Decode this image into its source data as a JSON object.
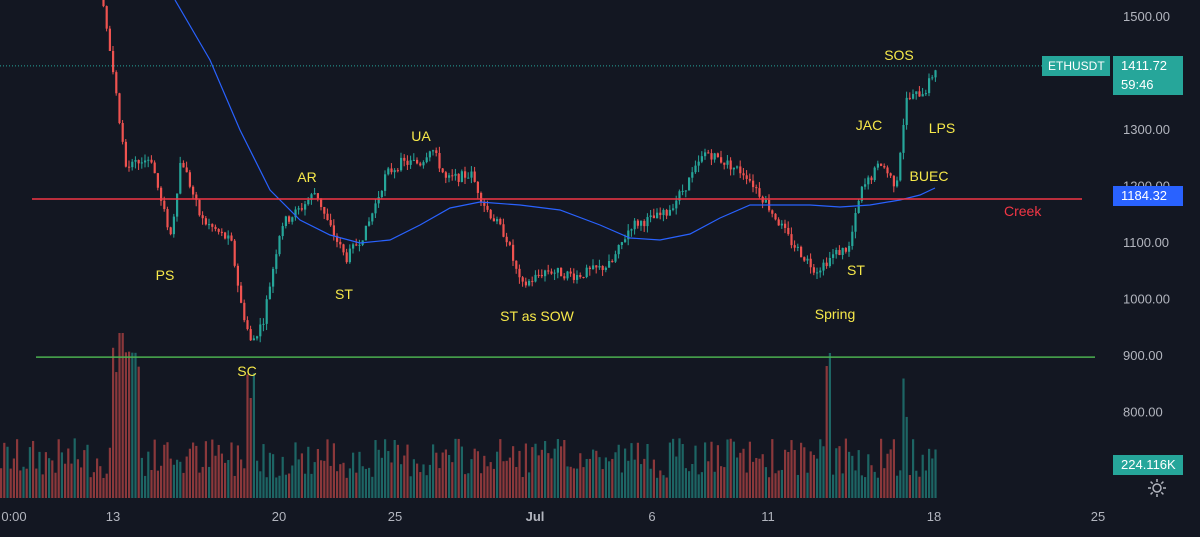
{
  "chart_data": {
    "type": "candlestick",
    "symbol": "ETHUSDT",
    "last_price": "1411.72",
    "countdown": "59:46",
    "current_volume": "224.116K",
    "line_value_label": "1184.32",
    "y_axis": {
      "ticks": [
        "1500.00",
        "1400.00",
        "1300.00",
        "1200.00",
        "1100.00",
        "1000.00",
        "900.00",
        "800.00"
      ],
      "range": [
        770,
        1535
      ]
    },
    "x_axis": {
      "ticks": [
        "0:00",
        "13",
        "20",
        "25",
        "Jul",
        "6",
        "11",
        "18",
        "25"
      ]
    },
    "horizontal_lines": [
      {
        "label": "Creek",
        "price": 1176,
        "color": "#f23645"
      },
      {
        "label": "",
        "price": 896,
        "color": "#4caf50"
      }
    ],
    "annotations": [
      "PS",
      "SC",
      "AR",
      "ST",
      "UA",
      "ST as SOW",
      "Spring",
      "ST",
      "JAC",
      "SOS",
      "LPS",
      "BUEC"
    ],
    "colors": {
      "up": "#26a69a",
      "down": "#ef5350",
      "ma": "#2962ff",
      "annotation": "#f7e94a",
      "background": "#131722"
    }
  },
  "ui": {
    "settings_icon": "gear-icon"
  }
}
